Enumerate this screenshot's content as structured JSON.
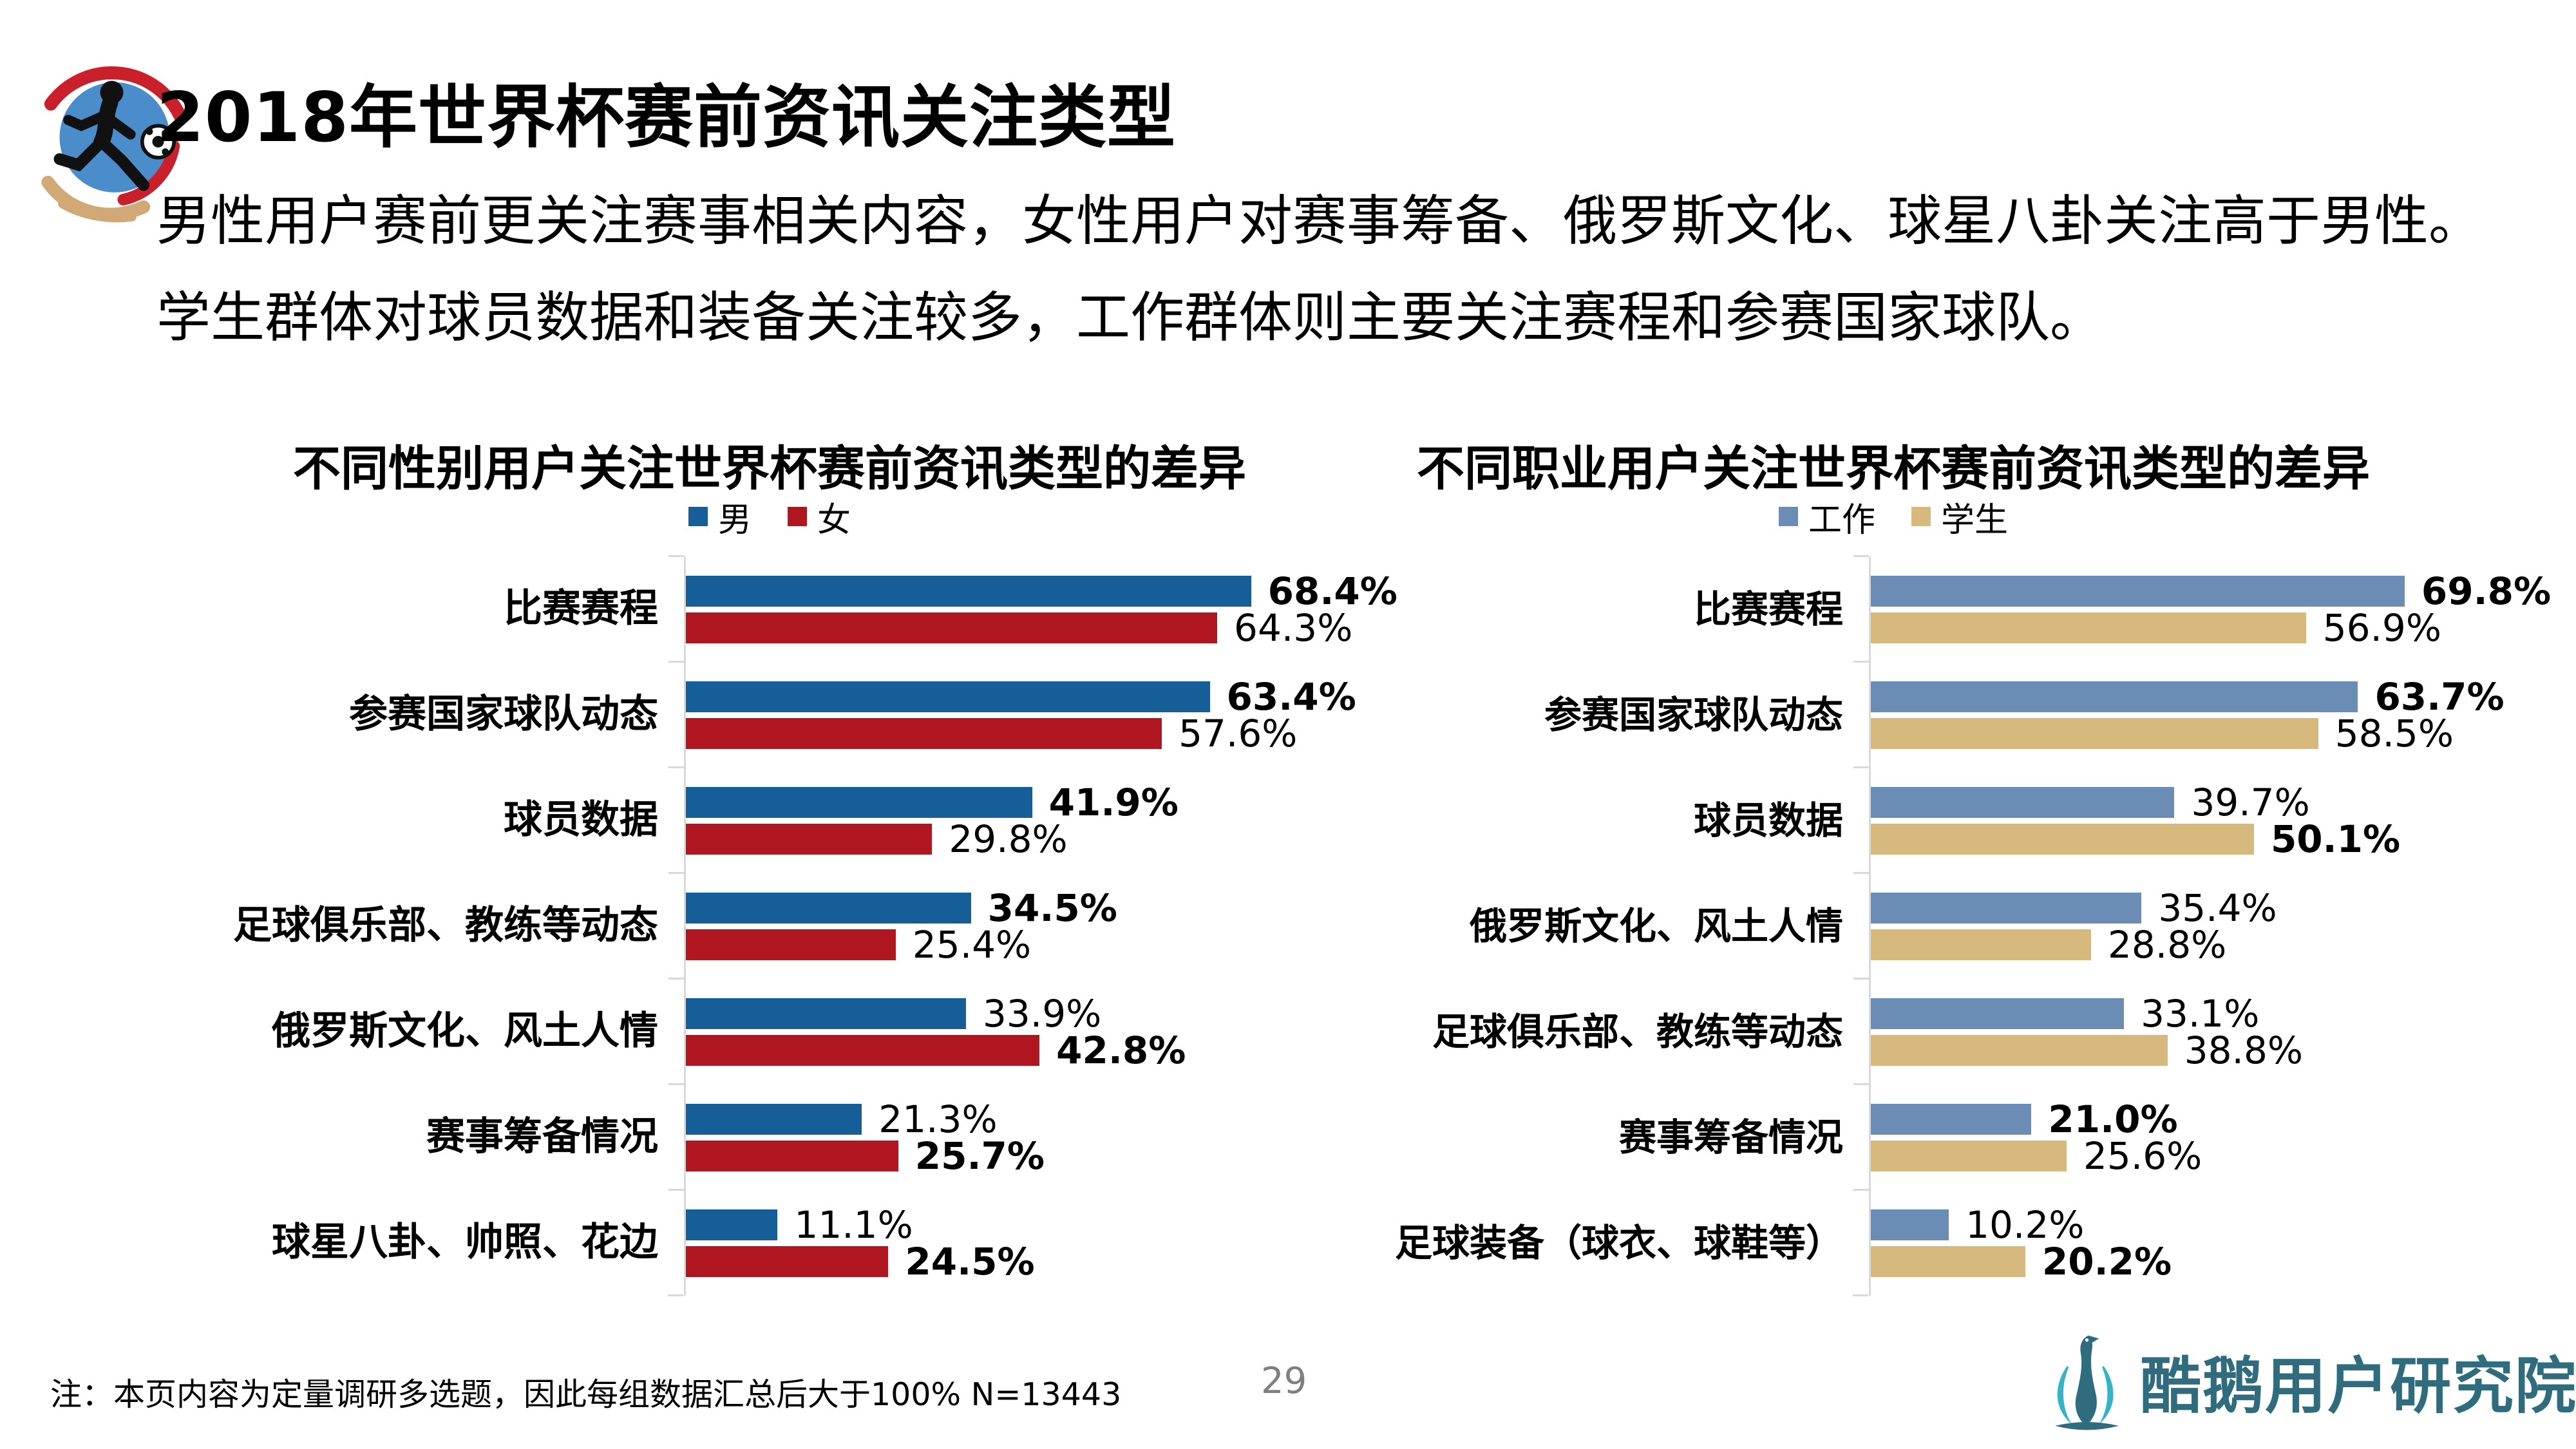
{
  "page": {
    "title": "2018年世界杯赛前资讯关注类型",
    "subtitle_line1": "男性用户赛前更关注赛事相关内容，女性用户对赛事筹备、俄罗斯文化、球星八卦关注高于男性。",
    "subtitle_line2": "学生群体对球员数据和装备关注较多，工作群体则主要关注赛程和参赛国家球队。",
    "footnote": "注：本页内容为定量调研多选题，因此每组数据汇总后大于100%  N=13443",
    "page_number": "29",
    "logo_text": "酷鹅用户研究院"
  },
  "icons": {
    "header": "soccer-player-icon",
    "logo": "goose-icon"
  },
  "colors": {
    "male_blue": "#155E97",
    "female_red": "#AF161F",
    "work_blue": "#6B8CB5",
    "student_tan": "#D7B97E",
    "axis_gray": "#D9D9D9",
    "page_number_gray": "#7F7F7F",
    "logo_teal": "#2E6C7E",
    "logo_wing_teal": "#35B4C7"
  },
  "chart_data": [
    {
      "type": "bar",
      "orientation": "horizontal",
      "title": "不同性别用户关注世界杯赛前资讯类型的差异",
      "legend_position": "top",
      "grid": false,
      "value_suffix": "%",
      "xlim": [
        0,
        83
      ],
      "categories": [
        "比赛赛程",
        "参赛国家球队动态",
        "球员数据",
        "足球俱乐部、教练等动态",
        "俄罗斯文化、风土人情",
        "赛事筹备情况",
        "球星八卦、帅照、花边"
      ],
      "series": [
        {
          "name": "男",
          "color": "#155E97",
          "values": [
            68.4,
            63.4,
            41.9,
            34.5,
            33.9,
            21.3,
            11.1
          ],
          "emphasis": [
            true,
            true,
            true,
            true,
            false,
            false,
            false
          ]
        },
        {
          "name": "女",
          "color": "#AF161F",
          "values": [
            64.3,
            57.6,
            29.8,
            25.4,
            42.8,
            25.7,
            24.5
          ],
          "emphasis": [
            false,
            false,
            false,
            false,
            true,
            true,
            true
          ]
        }
      ]
    },
    {
      "type": "bar",
      "orientation": "horizontal",
      "title": "不同职业用户关注世界杯赛前资讯类型的差异",
      "legend_position": "top",
      "grid": false,
      "value_suffix": "%",
      "xlim": [
        0,
        72
      ],
      "categories": [
        "比赛赛程",
        "参赛国家球队动态",
        "球员数据",
        "俄罗斯文化、风土人情",
        "足球俱乐部、教练等动态",
        "赛事筹备情况",
        "足球装备（球衣、球鞋等）"
      ],
      "series": [
        {
          "name": "工作",
          "color": "#6B8CB5",
          "values": [
            69.8,
            63.7,
            39.7,
            35.4,
            33.1,
            21.0,
            10.2
          ],
          "emphasis": [
            true,
            true,
            false,
            false,
            false,
            true,
            false
          ]
        },
        {
          "name": "学生",
          "color": "#D7B97E",
          "values": [
            56.9,
            58.5,
            50.1,
            28.8,
            38.8,
            25.6,
            20.2
          ],
          "emphasis": [
            false,
            false,
            true,
            false,
            false,
            false,
            true
          ]
        }
      ]
    }
  ]
}
